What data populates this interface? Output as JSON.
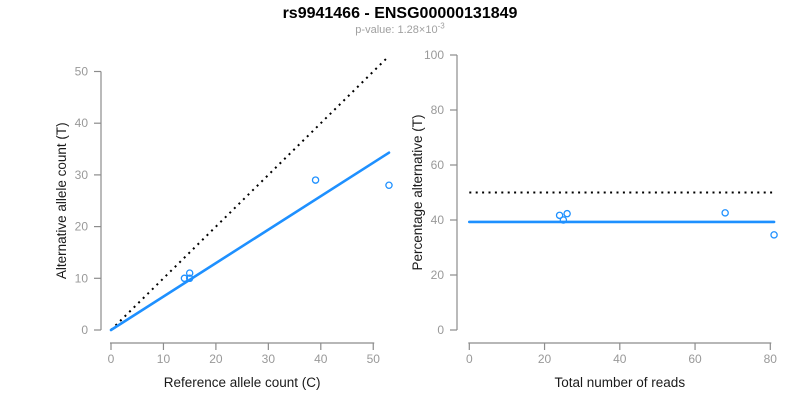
{
  "header": {
    "title": "rs9941466 - ENSG00000131849",
    "p_value_text": "p-value: 1.28×10",
    "p_value_exponent": "-3"
  },
  "colors": {
    "background": "#ffffff",
    "title": "#000000",
    "subtitle": "#a0a0a0",
    "axis_line": "#8c8c8c",
    "tick_label": "#999999",
    "axis_title": "#1a1a1a",
    "point_blue": "#1E90FF",
    "fit_line_blue": "#1E90FF",
    "reference_line_black": "#000000"
  },
  "chart_data": [
    {
      "type": "scatter",
      "panel": "allele-counts",
      "xlabel": "Reference allele count (C)",
      "ylabel": "Alternative allele count (T)",
      "xlim": [
        0,
        53
      ],
      "ylim": [
        0,
        53
      ],
      "xticks": [
        0,
        10,
        20,
        30,
        40,
        50
      ],
      "yticks": [
        0,
        10,
        20,
        30,
        40,
        50
      ],
      "grid": false,
      "points": [
        [
          14,
          10
        ],
        [
          15,
          11
        ],
        [
          15,
          10
        ],
        [
          39,
          29
        ],
        [
          53,
          28
        ]
      ],
      "lines": [
        {
          "style": "dotted",
          "color": "#000000",
          "from": [
            0,
            0
          ],
          "to": [
            53,
            53
          ]
        },
        {
          "style": "solid",
          "color": "#1E90FF",
          "from": [
            0,
            0
          ],
          "to": [
            53,
            34.3
          ]
        }
      ]
    },
    {
      "type": "scatter",
      "panel": "percentage-alternative",
      "xlabel": "Total number of reads",
      "ylabel": "Percentage alternative (T)",
      "xlim": [
        0,
        81
      ],
      "ylim": [
        0,
        100
      ],
      "xticks": [
        0,
        20,
        40,
        60,
        80
      ],
      "yticks": [
        0,
        20,
        40,
        60,
        80,
        100
      ],
      "grid": false,
      "points": [
        [
          24,
          41.7
        ],
        [
          26,
          42.3
        ],
        [
          25,
          40
        ],
        [
          68,
          42.6
        ],
        [
          81,
          34.6
        ]
      ],
      "lines": [
        {
          "style": "dotted",
          "color": "#000000",
          "from": [
            0,
            50
          ],
          "to": [
            81,
            50
          ]
        },
        {
          "style": "solid",
          "color": "#1E90FF",
          "from": [
            0,
            39.3
          ],
          "to": [
            81,
            39.3
          ]
        }
      ]
    }
  ]
}
